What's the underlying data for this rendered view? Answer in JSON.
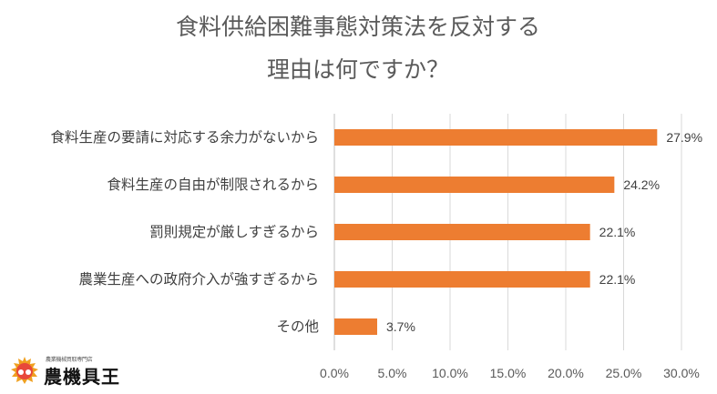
{
  "chart_data": {
    "type": "bar",
    "orientation": "horizontal",
    "title_lines": [
      "食料供給困難事態対策法を反対する",
      "理由は何ですか？"
    ],
    "categories": [
      "食料生産の要請に対応する余力がないから",
      "食料生産の自由が制限されるから",
      "罰則規定が厳しすぎるから",
      "農業生産への政府介入が強すぎるから",
      "その他"
    ],
    "values": [
      27.9,
      24.2,
      22.1,
      22.1,
      3.7
    ],
    "value_labels": [
      "27.9%",
      "24.2%",
      "22.1%",
      "22.1%",
      "3.7%"
    ],
    "xlim": [
      0,
      30
    ],
    "x_ticks": [
      "0.0%",
      "5.0%",
      "10.0%",
      "15.0%",
      "20.0%",
      "25.0%",
      "30.0%"
    ],
    "grid": true,
    "bar_color": "#ed7d31",
    "legend": "none"
  },
  "logo": {
    "small_text": "農業機械買取専門店",
    "name": "農機具王"
  }
}
